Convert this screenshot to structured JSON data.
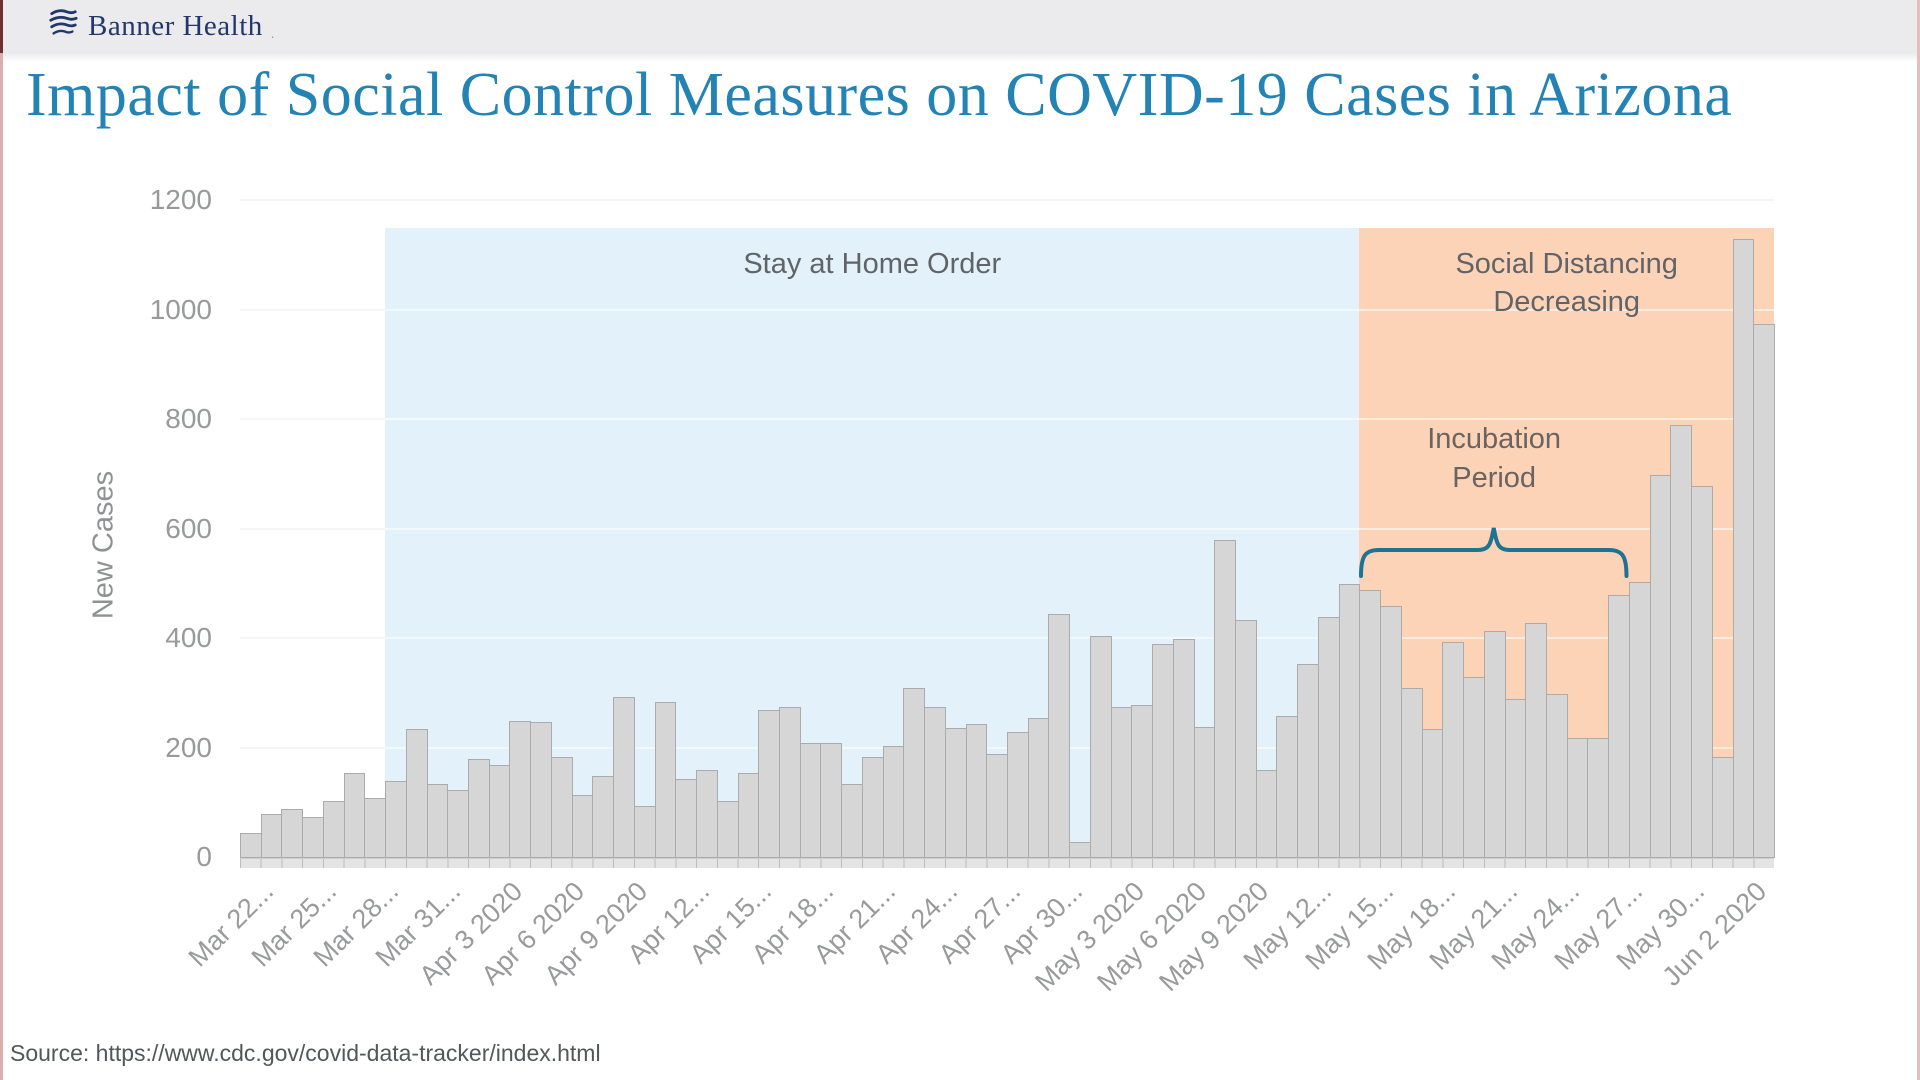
{
  "header": {
    "logo_text": "Banner Health",
    "logo_mark": ".",
    "logo_color": "#22376b"
  },
  "title": "Impact of Social Control Measures on COVID-19 Cases in Arizona",
  "source_note": "Source: https://www.cdc.gov/covid-data-tracker/index.html",
  "chart_data": {
    "type": "bar",
    "title": "Impact of Social Control Measures on COVID-19 Cases in Arizona",
    "xlabel": "",
    "ylabel": "New Cases",
    "ylim": [
      0,
      1200
    ],
    "yticks": [
      0,
      200,
      400,
      600,
      800,
      1000,
      1200
    ],
    "grid": true,
    "legend": false,
    "bar_color": "#d6d6d6",
    "bar_border_color": "#ababab",
    "categories": [
      "Mar 22",
      "Mar 23",
      "Mar 24",
      "Mar 25",
      "Mar 26",
      "Mar 27",
      "Mar 28",
      "Mar 29",
      "Mar 30",
      "Mar 31",
      "Apr 1",
      "Apr 2",
      "Apr 3",
      "Apr 4",
      "Apr 5",
      "Apr 6",
      "Apr 7",
      "Apr 8",
      "Apr 9",
      "Apr 10",
      "Apr 11",
      "Apr 12",
      "Apr 13",
      "Apr 14",
      "Apr 15",
      "Apr 16",
      "Apr 17",
      "Apr 18",
      "Apr 19",
      "Apr 20",
      "Apr 21",
      "Apr 22",
      "Apr 23",
      "Apr 24",
      "Apr 25",
      "Apr 26",
      "Apr 27",
      "Apr 28",
      "Apr 29",
      "Apr 30",
      "May 1",
      "May 2",
      "May 3",
      "May 4",
      "May 5",
      "May 6",
      "May 7",
      "May 8",
      "May 9",
      "May 10",
      "May 11",
      "May 12",
      "May 13",
      "May 14",
      "May 15",
      "May 16",
      "May 17",
      "May 18",
      "May 19",
      "May 20",
      "May 21",
      "May 22",
      "May 23",
      "May 24",
      "May 25",
      "May 26",
      "May 27",
      "May 28",
      "May 29",
      "May 30",
      "May 31",
      "Jun 1",
      "Jun 2",
      "Jun 3"
    ],
    "values": [
      45,
      80,
      90,
      75,
      105,
      155,
      110,
      140,
      235,
      135,
      125,
      180,
      170,
      250,
      248,
      185,
      115,
      150,
      295,
      95,
      285,
      145,
      160,
      105,
      155,
      270,
      275,
      210,
      210,
      135,
      185,
      205,
      310,
      275,
      238,
      245,
      190,
      230,
      255,
      445,
      30,
      405,
      275,
      280,
      390,
      400,
      240,
      580,
      435,
      160,
      260,
      355,
      440,
      500,
      490,
      460,
      310,
      235,
      395,
      330,
      415,
      290,
      430,
      300,
      220,
      220,
      480,
      505,
      700,
      790,
      680,
      185,
      1130,
      975
    ],
    "x_tick_step": 3,
    "x_tick_labels": [
      "Mar 22...",
      "Mar 25...",
      "Mar 28...",
      "Mar 31...",
      "Apr 3 2020",
      "Apr 6 2020",
      "Apr 9 2020",
      "Apr 12...",
      "Apr 15...",
      "Apr 18...",
      "Apr 21...",
      "Apr 24...",
      "Apr 27...",
      "Apr 30...",
      "May 3 2020",
      "May 6 2020",
      "May 9 2020",
      "May 12...",
      "May 15...",
      "May 18...",
      "May 21...",
      "May 24...",
      "May 27...",
      "May 30...",
      "Jun 2 2020"
    ],
    "regions": [
      {
        "name": "stay-at-home-order",
        "label_lines": [
          "Stay at Home Order"
        ],
        "start_index": 7,
        "end_index": 54,
        "color": "#e2f1fa"
      },
      {
        "name": "social-distancing-decreasing",
        "label_lines": [
          "Social Distancing",
          "Decreasing"
        ],
        "start_index": 54,
        "end_index": 74,
        "color": "#fdd3b8"
      }
    ],
    "annotation": {
      "label_lines": [
        "Incubation",
        "Period"
      ],
      "brace_start_index": 54,
      "brace_end_index": 67,
      "brace_color": "#1d7390"
    }
  }
}
